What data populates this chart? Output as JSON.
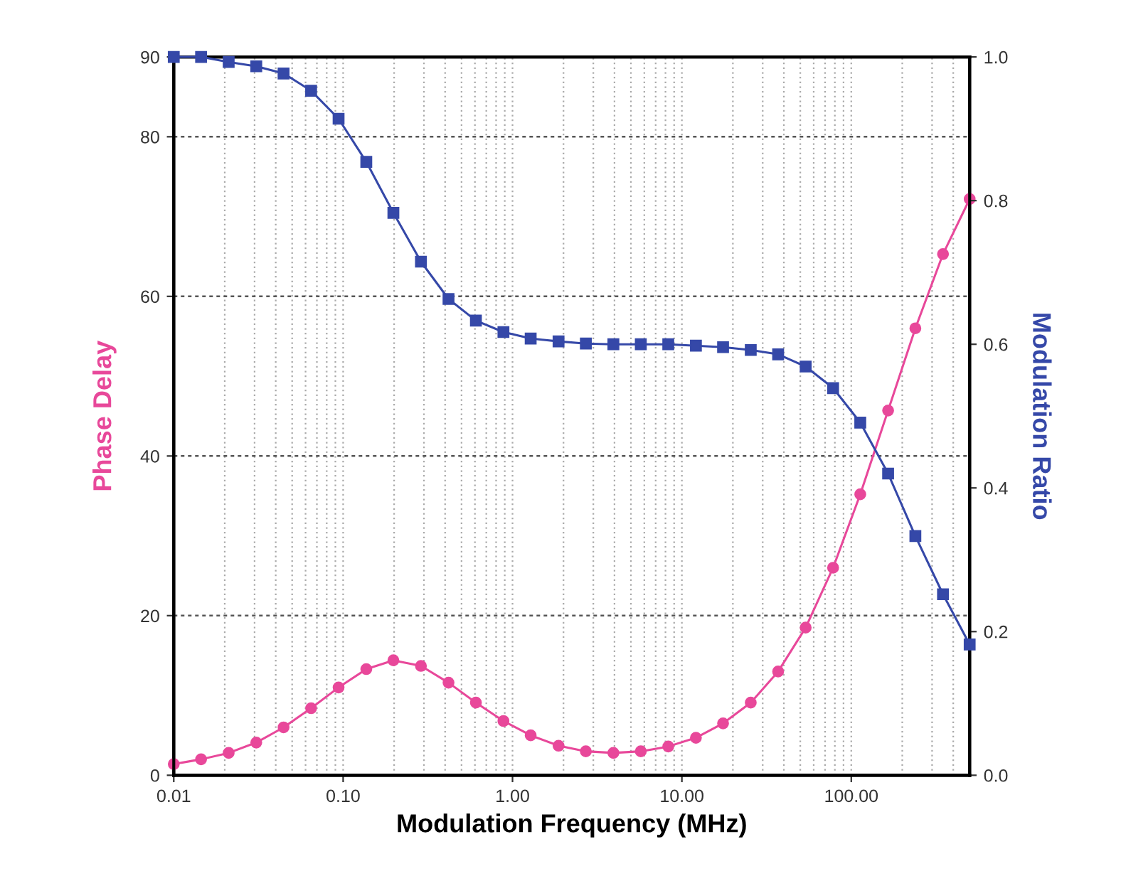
{
  "chart_data": {
    "type": "line",
    "xlabel": "Modulation Frequency (MHz)",
    "ylabel": "Phase Delay",
    "y2label": "Modulation Ratio",
    "log": "x",
    "grid": true,
    "x": [
      0.01,
      0.0145,
      0.0211,
      0.0307,
      0.0445,
      0.0647,
      0.094,
      0.137,
      0.198,
      0.288,
      0.419,
      0.608,
      0.884,
      1.28,
      1.87,
      2.71,
      3.94,
      5.72,
      8.31,
      12.1,
      17.5,
      25.5,
      37.0,
      53.8,
      78.1,
      113,
      165,
      239,
      348,
      500
    ],
    "series": [
      {
        "name": null,
        "color": "#e8489a",
        "marker": "circle",
        "axis": "y",
        "values": [
          1.4,
          2.0,
          2.8,
          4.1,
          6.0,
          8.4,
          11.0,
          13.3,
          14.4,
          13.7,
          11.6,
          9.1,
          6.8,
          5.0,
          3.7,
          3.0,
          2.8,
          3.0,
          3.6,
          4.7,
          6.5,
          9.1,
          13.0,
          18.5,
          26.0,
          35.2,
          45.7,
          56.0,
          65.3,
          72.2
        ]
      },
      {
        "name": null,
        "color": "#3548a8",
        "marker": "square",
        "axis": "y2",
        "values": [
          1.0,
          1.0,
          0.993,
          0.987,
          0.977,
          0.953,
          0.914,
          0.854,
          0.783,
          0.715,
          0.663,
          0.633,
          0.617,
          0.608,
          0.604,
          0.601,
          0.6,
          0.6,
          0.6,
          0.598,
          0.596,
          0.592,
          0.586,
          0.569,
          0.539,
          0.491,
          0.42,
          0.333,
          0.252,
          0.182
        ]
      }
    ],
    "xlim": [
      0.01,
      500
    ],
    "xticks": [
      {
        "value": 0.01,
        "label": "0.01"
      },
      {
        "value": 0.1,
        "label": "0.10"
      },
      {
        "value": 1,
        "label": "1.00"
      },
      {
        "value": 10,
        "label": "10.00"
      },
      {
        "value": 100,
        "label": "100.00"
      }
    ],
    "ylim": [
      0,
      90
    ],
    "yticks": [
      0,
      20,
      40,
      60,
      80,
      90
    ],
    "y2lim": [
      0,
      1.0
    ],
    "y2ticks": [
      {
        "value": 0,
        "label": "0.0"
      },
      {
        "value": 0.2,
        "label": "0.2"
      },
      {
        "value": 0.4,
        "label": "0.4"
      },
      {
        "value": 0.6,
        "label": "0.6"
      },
      {
        "value": 0.8,
        "label": "0.8"
      },
      {
        "value": 1.0,
        "label": "1.0"
      }
    ]
  }
}
